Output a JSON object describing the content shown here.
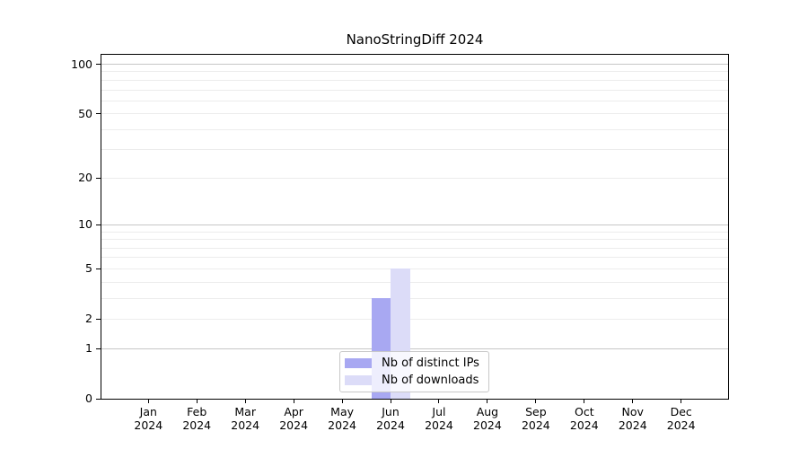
{
  "title": "NanoStringDiff 2024",
  "colors": {
    "distinct_ips_bar": "#a8a8f2",
    "downloads_bar": "#dcdcf8",
    "axis": "#000000",
    "major_grid": "#c6c6c6",
    "minor_grid": "#ececec",
    "legend_border": "#c8c8c8"
  },
  "legend": {
    "items": [
      {
        "label": "Nb of distinct IPs",
        "color": "#a8a8f2"
      },
      {
        "label": "Nb of downloads",
        "color": "#dcdcf8"
      }
    ]
  },
  "chart_data": {
    "type": "bar",
    "title": "NanoStringDiff 2024",
    "categories": [
      "Jan 2024",
      "Feb 2024",
      "Mar 2024",
      "Apr 2024",
      "May 2024",
      "Jun 2024",
      "Jul 2024",
      "Aug 2024",
      "Sep 2024",
      "Oct 2024",
      "Nov 2024",
      "Dec 2024"
    ],
    "series": [
      {
        "name": "Nb of distinct IPs",
        "color": "#a8a8f2",
        "values": [
          0,
          0,
          0,
          0,
          0,
          3,
          0,
          0,
          0,
          0,
          0,
          0
        ]
      },
      {
        "name": "Nb of downloads",
        "color": "#dcdcf8",
        "values": [
          0,
          0,
          0,
          0,
          0,
          5,
          0,
          0,
          0,
          0,
          0,
          0
        ]
      }
    ],
    "xlabel": "",
    "ylabel": "",
    "yscale": "log1p",
    "ylim": [
      0,
      114
    ],
    "yticks": [
      0,
      1,
      2,
      5,
      10,
      20,
      50,
      100
    ],
    "major_gridlines": [
      1,
      10,
      100
    ],
    "minor_gridlines": [
      2,
      3,
      4,
      5,
      6,
      7,
      8,
      9,
      20,
      30,
      40,
      50,
      60,
      70,
      80,
      90
    ],
    "grid": "horizontal",
    "legend_position": "lower center"
  }
}
